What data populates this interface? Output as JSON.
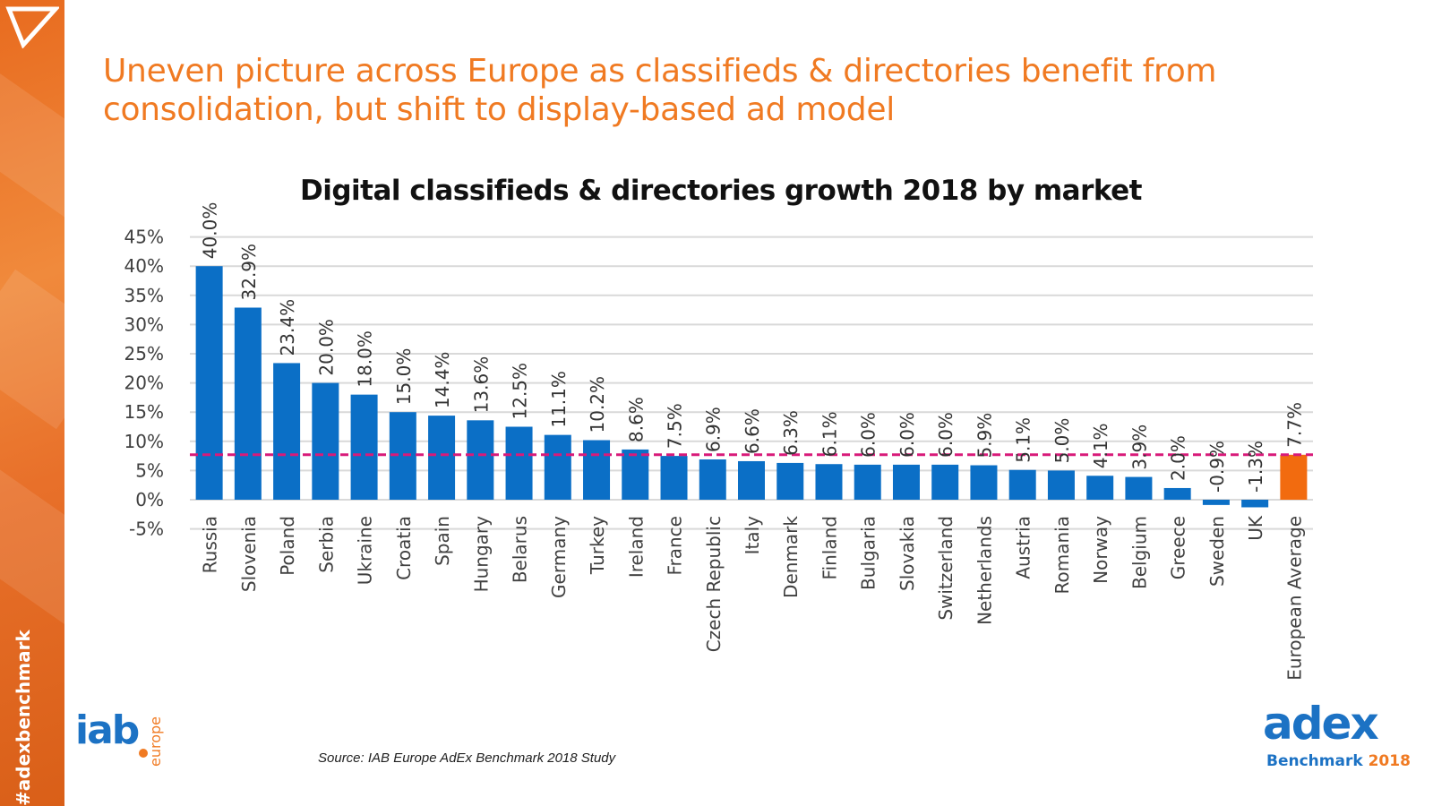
{
  "sidebar": {
    "hashtag": "#adexbenchmark"
  },
  "headline": "Uneven picture across Europe as classifieds & directories benefit from consolidation, but shift to display-based ad model",
  "source": "Source: IAB Europe AdEx Benchmark 2018 Study",
  "logos": {
    "iab_main": "iab",
    "iab_sub": "europe",
    "adex_word": "adex",
    "adex_sub": "Benchmark",
    "adex_year": "2018"
  },
  "colors": {
    "accent": "#f07a22",
    "bar": "#0b6fc6",
    "highlight_bar": "#f26b0f",
    "average_line": "#d81b7a",
    "brand_blue": "#1c72c4"
  },
  "chart_data": {
    "type": "bar",
    "title": "Digital classifieds & directories growth 2018 by market",
    "xlabel": "",
    "ylabel": "",
    "ylim": [
      -5,
      45
    ],
    "yticks": [
      "-5%",
      "0%",
      "5%",
      "10%",
      "15%",
      "20%",
      "25%",
      "30%",
      "35%",
      "40%",
      "45%"
    ],
    "grid": true,
    "categories": [
      "Russia",
      "Slovenia",
      "Poland",
      "Serbia",
      "Ukraine",
      "Croatia",
      "Spain",
      "Hungary",
      "Belarus",
      "Germany",
      "Turkey",
      "Ireland",
      "France",
      "Czech Republic",
      "Italy",
      "Denmark",
      "Finland",
      "Bulgaria",
      "Slovakia",
      "Switzerland",
      "Netherlands",
      "Austria",
      "Romania",
      "Norway",
      "Belgium",
      "Greece",
      "Sweden",
      "UK",
      "European Average"
    ],
    "values": [
      40.0,
      32.9,
      23.4,
      20.0,
      18.0,
      15.0,
      14.4,
      13.6,
      12.5,
      11.1,
      10.2,
      8.6,
      7.5,
      6.9,
      6.6,
      6.3,
      6.1,
      6.0,
      6.0,
      6.0,
      5.9,
      5.1,
      5.0,
      4.1,
      3.9,
      2.0,
      -0.9,
      -1.3,
      7.7
    ],
    "labels": [
      "40.0%",
      "32.9%",
      "23.4%",
      "20.0%",
      "18.0%",
      "15.0%",
      "14.4%",
      "13.6%",
      "12.5%",
      "11.1%",
      "10.2%",
      "8.6%",
      "7.5%",
      "6.9%",
      "6.6%",
      "6.3%",
      "6.1%",
      "6.0%",
      "6.0%",
      "6.0%",
      "5.9%",
      "5.1%",
      "5.0%",
      "4.1%",
      "3.9%",
      "2.0%",
      "-0.9%",
      "-1.3%",
      "7.7%"
    ],
    "highlight_category": "European Average",
    "average_line": 7.7
  }
}
